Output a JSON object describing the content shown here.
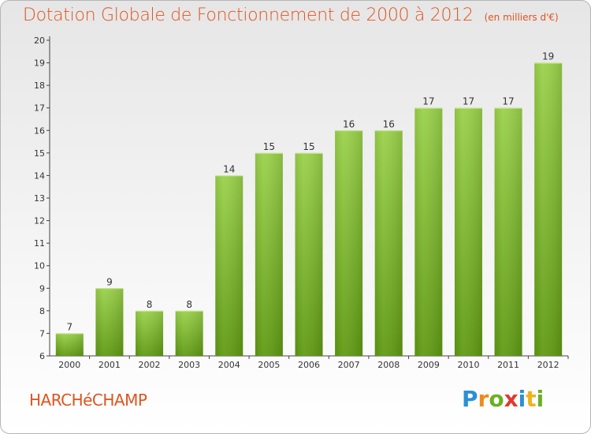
{
  "title": "Dotation Globale de Fonctionnement de 2000 à 2012",
  "subtitle": "(en milliers d'€)",
  "commune": "HARCHéCHAMP",
  "logo": {
    "letters": [
      "P",
      "r",
      "o",
      "x",
      "i",
      "t",
      "i"
    ],
    "colors": [
      "#2a8fd6",
      "#f08a1c",
      "#6ab023",
      "#e03a2f",
      "#2a8fd6",
      "#f0b21c",
      "#6ab023"
    ]
  },
  "colors": {
    "title": "#e0531f",
    "bar_top": "#9ad14a",
    "bar_bottom": "#5f9a12",
    "axis": "#444444"
  },
  "chart_data": {
    "type": "bar",
    "categories": [
      "2000",
      "2001",
      "2002",
      "2003",
      "2004",
      "2005",
      "2006",
      "2007",
      "2008",
      "2009",
      "2010",
      "2011",
      "2012"
    ],
    "values": [
      7,
      9,
      8,
      8,
      14,
      15,
      15,
      16,
      16,
      17,
      17,
      17,
      19
    ],
    "ylim": [
      6,
      20
    ],
    "yticks": [
      6,
      7,
      8,
      9,
      10,
      11,
      12,
      13,
      14,
      15,
      16,
      17,
      18,
      19,
      20
    ],
    "grid": false,
    "data_labels": true
  }
}
